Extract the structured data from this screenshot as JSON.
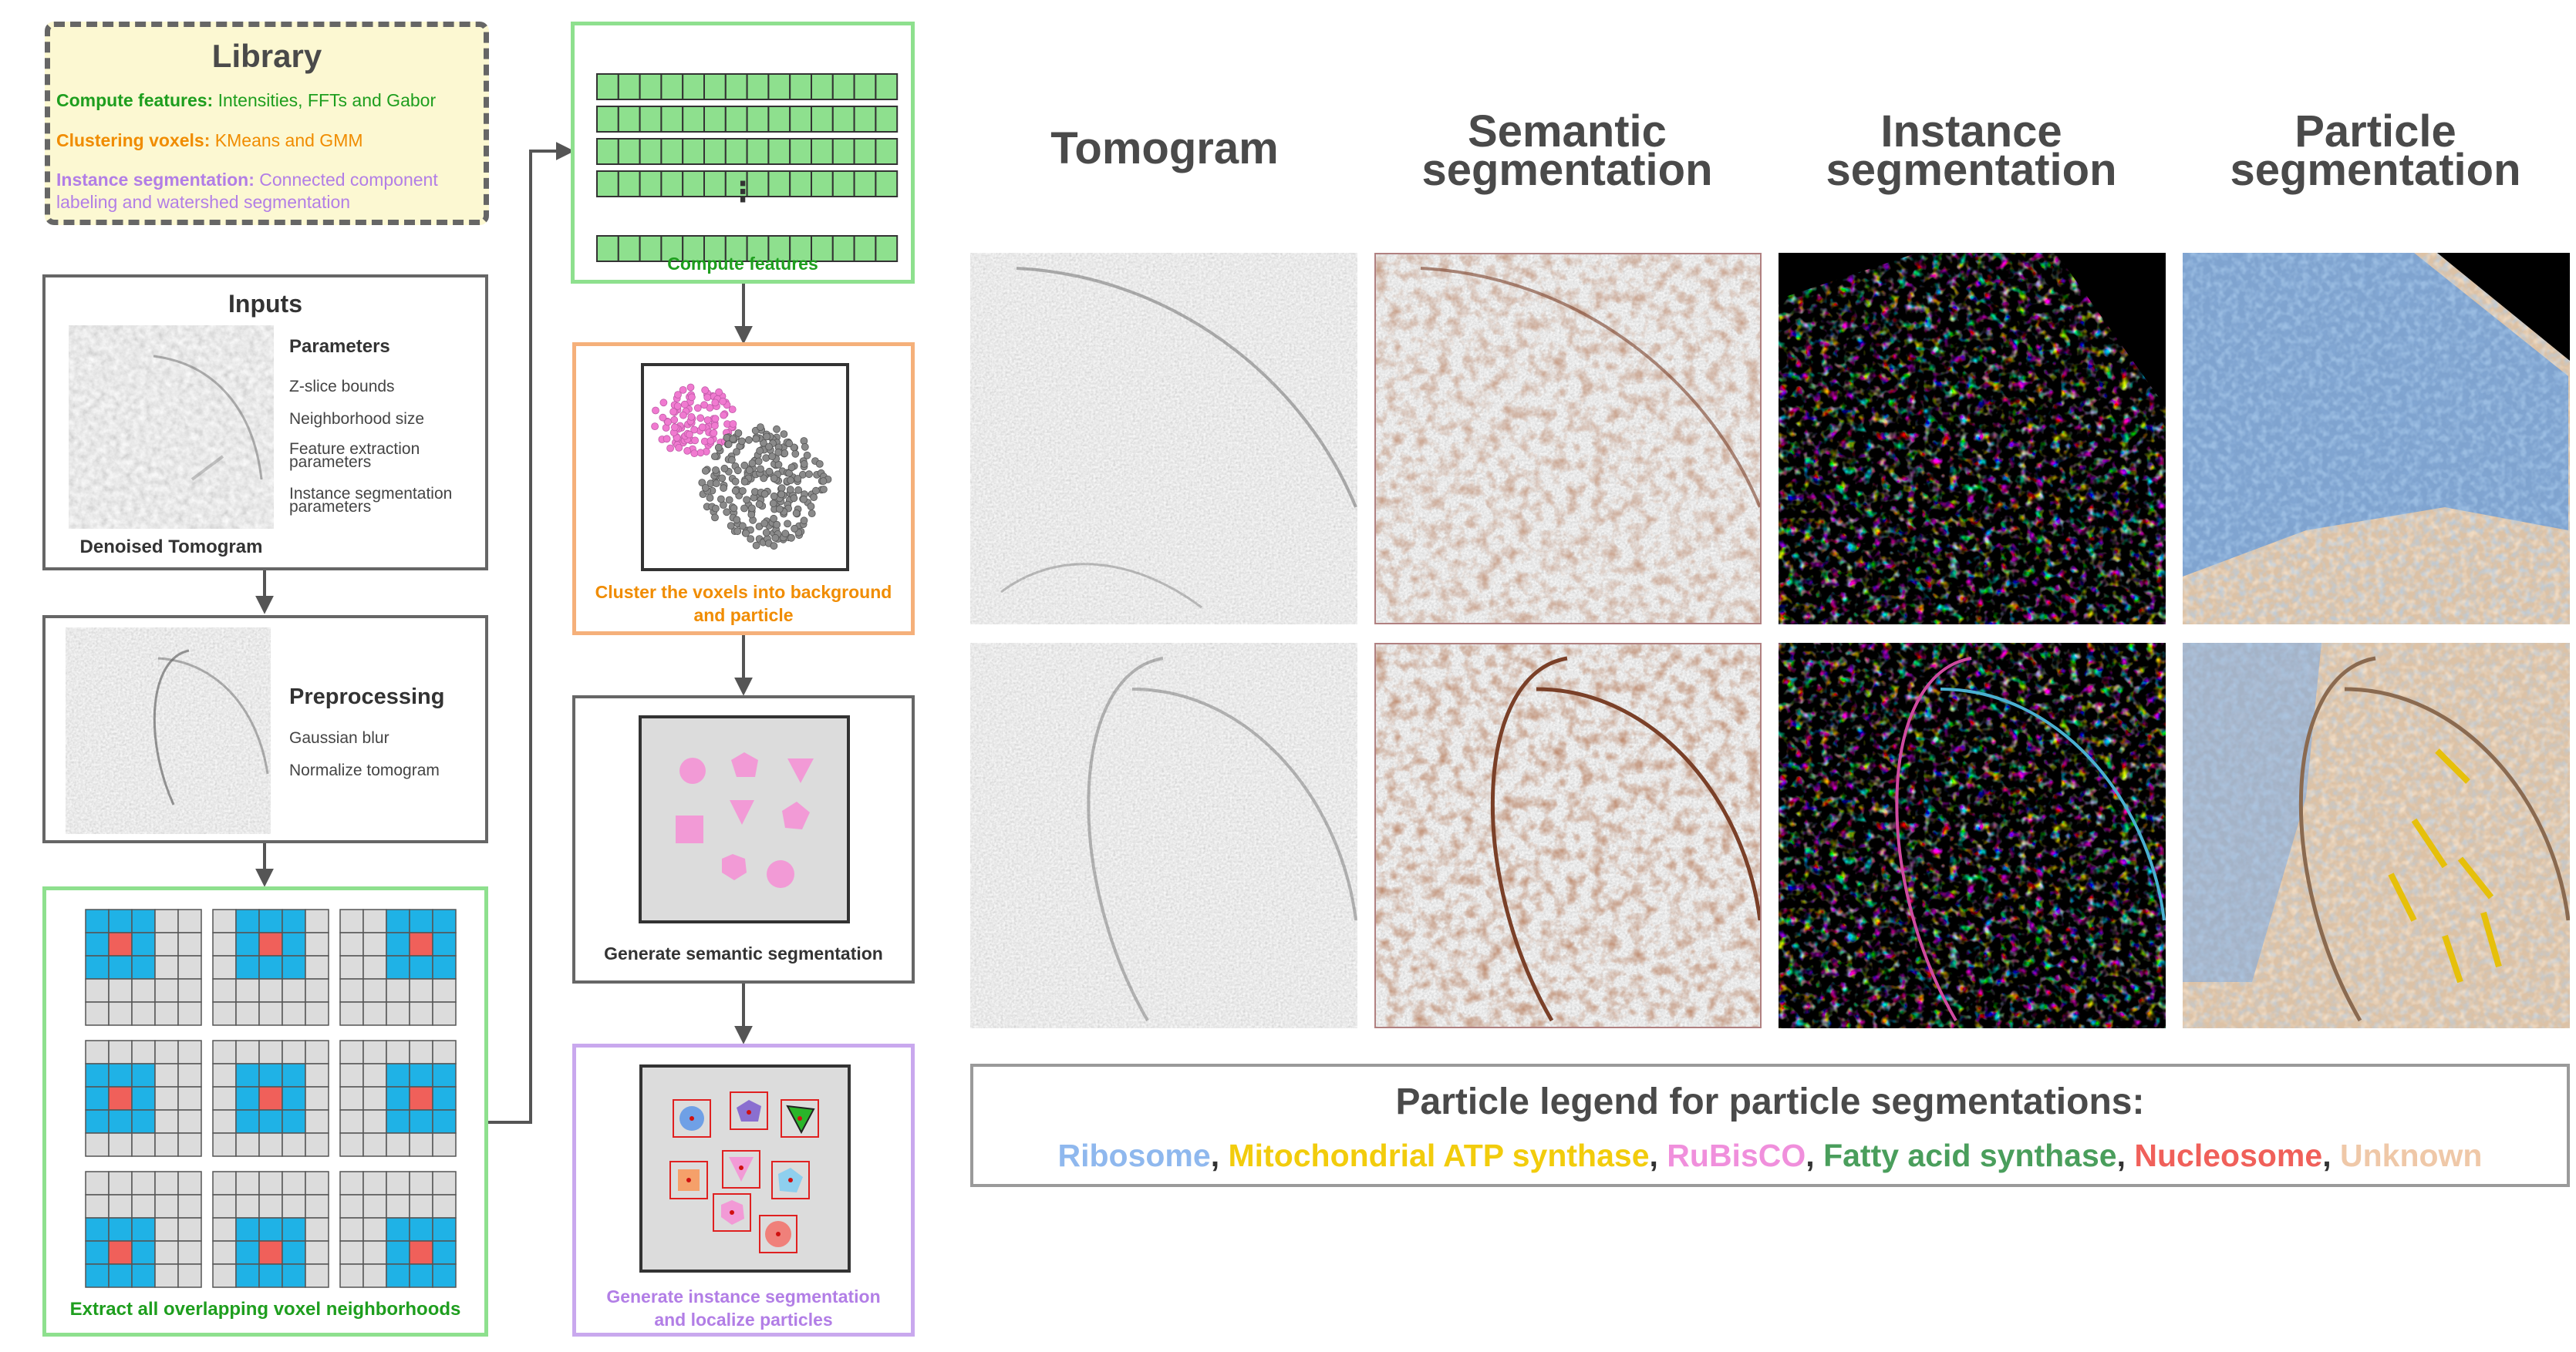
{
  "library": {
    "title": "Library",
    "lines": [
      {
        "label": "Compute features:",
        "text": " Intensities, FFTs and Gabor",
        "color": "#1e9e1e"
      },
      {
        "label": "Clustering voxels:",
        "text": " KMeans and GMM",
        "color": "#f08c00"
      },
      {
        "label": "Instance segmentation:",
        "text": " Connected component labeling and watershed segmentation",
        "color": "#b27ee6"
      }
    ]
  },
  "inputs": {
    "title": "Inputs",
    "params_title": "Parameters",
    "params": [
      "Z-slice bounds",
      "Neighborhood size",
      "Feature extraction parameters",
      "Instance segmentation parameters"
    ],
    "caption": "Denoised Tomogram"
  },
  "preprocessing": {
    "title": "Preprocessing",
    "items": [
      "Gaussian blur",
      "Normalize tomogram"
    ]
  },
  "neighborhoods": {
    "caption": "Extract all overlapping voxel neighborhoods"
  },
  "features": {
    "caption": "Compute features",
    "ellipsis": "⋮"
  },
  "cluster": {
    "caption_line1": "Cluster the voxels into background",
    "caption_line2": "and particle"
  },
  "semantic": {
    "caption": "Generate semantic segmentation"
  },
  "instance": {
    "caption_line1": "Generate instance segmentation",
    "caption_line2": "and localize particles"
  },
  "columns": {
    "tomogram": "Tomogram",
    "semantic_l1": "Semantic",
    "semantic_l2": "segmentation",
    "instance_l1": "Instance",
    "instance_l2": "segmentation",
    "particle_l1": "Particle",
    "particle_l2": "segmentation"
  },
  "legend": {
    "title": "Particle legend for particle segmentations:",
    "items": [
      {
        "name": "Ribosome",
        "color": "#8fb8ee"
      },
      {
        "name": "Mitochondrial ATP synthase",
        "color": "#f2cc0c"
      },
      {
        "name": "RuBisCO",
        "color": "#f08fdc"
      },
      {
        "name": "Fatty acid synthase",
        "color": "#4a9e5c"
      },
      {
        "name": "Nucleosome",
        "color": "#f0605a"
      },
      {
        "name": "Unknown",
        "color": "#efc8a8"
      }
    ],
    "separator": ", "
  },
  "colors": {
    "green": "#8ee08e",
    "orange": "#f5b07a",
    "purple": "#c9a8ee",
    "dash": "#555555",
    "library_bg": "#fcf8d2",
    "cell_blue": "#1fb2e6",
    "cell_red": "#f0605a",
    "cell_gray": "#dcdcdc"
  }
}
